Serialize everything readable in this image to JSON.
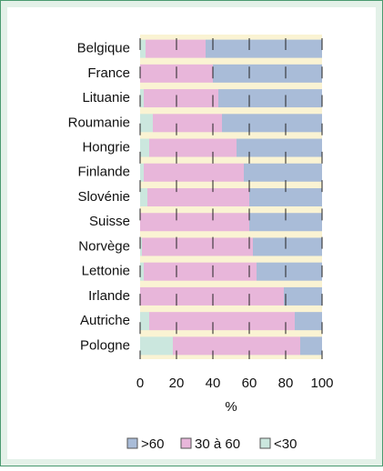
{
  "chart_data": {
    "type": "stacked_barh",
    "categories": [
      "Belgique",
      "France",
      "Lituanie",
      "Roumanie",
      "Hongrie",
      "Finlande",
      "Slovénie",
      "Suisse",
      "Norvège",
      "Lettonie",
      "Irlande",
      "Autriche",
      "Pologne"
    ],
    "series": [
      {
        "name": "<30",
        "color": "#cbe7de",
        "values": [
          3,
          0,
          2,
          7,
          5,
          2,
          4,
          0,
          1,
          2,
          0,
          5,
          18
        ]
      },
      {
        "name": "30 à 60",
        "color": "#e8b6da",
        "values": [
          33,
          40,
          41,
          38,
          48,
          55,
          56,
          60,
          61,
          62,
          79,
          80,
          70
        ]
      },
      {
        "name": ">60",
        "color": "#a9bcd8",
        "values": [
          64,
          60,
          57,
          55,
          47,
          43,
          40,
          40,
          38,
          36,
          21,
          15,
          12
        ]
      }
    ],
    "xlim": [
      0,
      100
    ],
    "xticks": [
      0,
      20,
      40,
      60,
      80,
      100
    ],
    "xlabel": "%",
    "grid": true
  }
}
